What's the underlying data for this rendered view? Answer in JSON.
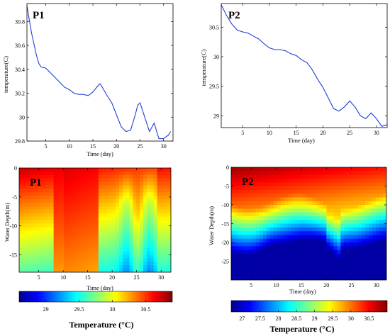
{
  "chart_data": [
    {
      "id": "p1_line",
      "type": "line",
      "panel_label": "P1",
      "xlabel": "Time (day)",
      "ylabel": "temperature(C)",
      "xlim": [
        1,
        32
      ],
      "ylim": [
        29.8,
        30.95
      ],
      "xticks": [
        5,
        10,
        15,
        20,
        25,
        30
      ],
      "yticks": [
        29.8,
        30,
        30.2,
        30.4,
        30.6,
        30.8
      ],
      "ytick_labels": [
        "29.8",
        "30",
        "30.2",
        "30.4",
        "30.6",
        "30.8"
      ],
      "series": [
        {
          "color": "#1f3fd6",
          "x": [
            1,
            2,
            3,
            3.5,
            4,
            5,
            6,
            7,
            8,
            9,
            10,
            11,
            12,
            13,
            14,
            15,
            16,
            16.5,
            17,
            18,
            19,
            20,
            21,
            22,
            23,
            24,
            24.5,
            25,
            26,
            27,
            28,
            29,
            30,
            31,
            31.5
          ],
          "y": [
            30.93,
            30.7,
            30.52,
            30.45,
            30.42,
            30.41,
            30.37,
            30.33,
            30.29,
            30.25,
            30.23,
            30.2,
            30.19,
            30.19,
            30.18,
            30.21,
            30.26,
            30.28,
            30.25,
            30.18,
            30.12,
            30.02,
            29.92,
            29.88,
            29.89,
            30.02,
            30.1,
            30.12,
            30.0,
            29.88,
            29.95,
            29.82,
            29.82,
            29.85,
            29.88
          ]
        }
      ]
    },
    {
      "id": "p2_line",
      "type": "line",
      "panel_label": "P2",
      "xlabel": "Time (day)",
      "ylabel": "temperature(C)",
      "xlim": [
        1,
        32
      ],
      "ylim": [
        28.8,
        30.9
      ],
      "xticks": [
        5,
        10,
        15,
        20,
        25,
        30
      ],
      "yticks": [
        29,
        29.5,
        30,
        30.5
      ],
      "ytick_labels": [
        "29",
        "29.5",
        "30",
        "30.5"
      ],
      "series": [
        {
          "color": "#1f3fd6",
          "x": [
            1,
            2,
            3,
            4,
            5,
            6,
            7,
            8,
            9,
            10,
            11,
            12,
            13,
            14,
            15,
            16,
            17,
            18,
            19,
            20,
            21,
            22,
            23,
            24,
            25,
            26,
            27,
            28,
            29,
            30,
            31,
            32
          ],
          "y": [
            30.88,
            30.7,
            30.55,
            30.45,
            30.42,
            30.4,
            30.35,
            30.3,
            30.22,
            30.15,
            30.12,
            30.12,
            30.1,
            30.05,
            30.02,
            29.95,
            29.9,
            29.78,
            29.62,
            29.48,
            29.3,
            29.12,
            29.08,
            29.15,
            29.25,
            29.15,
            29.0,
            28.95,
            29.05,
            28.95,
            28.82,
            28.85
          ]
        }
      ]
    },
    {
      "id": "p1_heatmap",
      "type": "heatmap",
      "panel_label": "P1",
      "xlabel": "Time (day)",
      "ylabel": "Water Depth(m)",
      "xlim": [
        1,
        32
      ],
      "ylim": [
        -18,
        0
      ],
      "xticks": [
        5,
        10,
        15,
        20,
        25,
        30
      ],
      "yticks": [
        0,
        -5,
        -10,
        -15
      ],
      "ytick_labels": [
        "0",
        "-5",
        "-10",
        "-15"
      ],
      "colorbar": {
        "title": "Temperature (°C)",
        "range": [
          28.6,
          30.9
        ],
        "ticks": [
          29,
          29.5,
          30,
          30.5
        ],
        "tick_labels": [
          "29",
          "29.5",
          "30",
          "30.5"
        ]
      }
    },
    {
      "id": "p2_heatmap",
      "type": "heatmap",
      "panel_label": "P2",
      "xlabel": "Time (day)",
      "ylabel": "Water Depth(m)",
      "xlim": [
        1,
        32
      ],
      "ylim": [
        -30,
        0
      ],
      "xticks": [
        5,
        10,
        15,
        20,
        25,
        30
      ],
      "yticks": [
        0,
        -5,
        -10,
        -15,
        -20,
        -25
      ],
      "ytick_labels": [
        "0",
        "-5",
        "-10",
        "-15",
        "-20",
        "-25"
      ],
      "colorbar": {
        "title": "Temperature (°C)",
        "range": [
          26.7,
          31.0
        ],
        "ticks": [
          27,
          27.5,
          28,
          28.5,
          29,
          29.5,
          30,
          30.5
        ],
        "tick_labels": [
          "27",
          "27.5",
          "28",
          "28.5",
          "29",
          "29.5",
          "30",
          "30.5"
        ]
      }
    }
  ]
}
